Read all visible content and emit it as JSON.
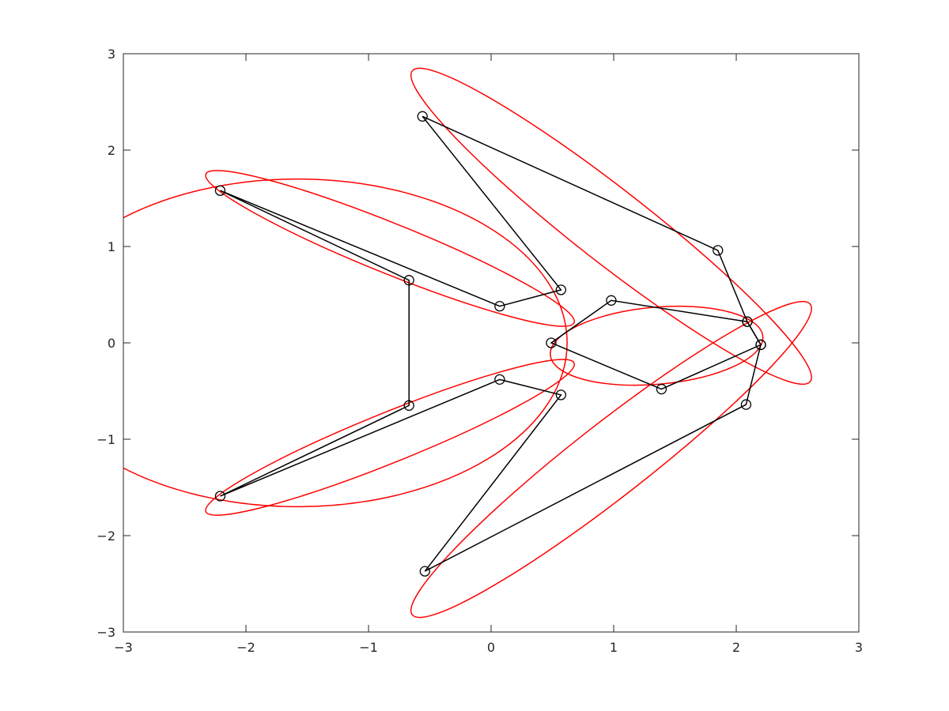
{
  "chart_data": {
    "type": "line",
    "title": "",
    "xlabel": "",
    "ylabel": "",
    "xlim": [
      -3,
      3
    ],
    "ylim": [
      -3,
      3
    ],
    "xticks": [
      -3,
      -2,
      -1,
      0,
      1,
      2,
      3
    ],
    "yticks": [
      -3,
      -2,
      -1,
      0,
      1,
      2,
      3
    ],
    "xtick_labels": [
      "−3",
      "−2",
      "−1",
      "0",
      "1",
      "2",
      "3"
    ],
    "ytick_labels": [
      "−3",
      "−2",
      "−1",
      "0",
      "1",
      "2",
      "3"
    ],
    "grid": false,
    "polygon_color": "#000000",
    "ellipse_color": "#ff0000",
    "polygons": [
      [
        [
          -2.21,
          1.58
        ],
        [
          -0.67,
          0.65
        ],
        [
          -0.67,
          -0.65
        ],
        [
          -2.21,
          -1.59
        ],
        [
          0.07,
          -0.38
        ],
        [
          0.57,
          -0.54
        ],
        [
          -0.54,
          -2.37
        ],
        [
          2.08,
          -0.64
        ],
        [
          2.2,
          -0.02
        ],
        [
          2.09,
          0.22
        ],
        [
          1.85,
          0.96
        ],
        [
          -0.56,
          2.35
        ],
        [
          0.57,
          0.55
        ],
        [
          0.07,
          0.38
        ]
      ],
      [
        [
          0.49,
          0.0
        ],
        [
          0.98,
          0.44
        ],
        [
          2.09,
          0.22
        ],
        [
          2.2,
          -0.02
        ],
        [
          1.39,
          -0.48
        ]
      ]
    ],
    "ellipses": [
      {
        "name": "upper-left",
        "cx": -0.825,
        "cy": 0.98,
        "rx": 1.62,
        "ry": 0.26,
        "angle_deg": -22
      },
      {
        "name": "lower-left",
        "cx": -0.825,
        "cy": -0.98,
        "rx": 1.62,
        "ry": 0.26,
        "angle_deg": 22
      },
      {
        "name": "upper-right",
        "cx": 0.98,
        "cy": 1.21,
        "rx": 2.06,
        "ry": 0.38,
        "angle_deg": -38
      },
      {
        "name": "lower-right",
        "cx": 0.98,
        "cy": -1.21,
        "rx": 2.06,
        "ry": 0.38,
        "angle_deg": 38
      },
      {
        "name": "left-middle",
        "cx": -1.58,
        "cy": 0.0,
        "rx": 2.2,
        "ry": 1.7,
        "angle_deg": 0,
        "visible_arc": "right"
      },
      {
        "name": "center-right",
        "cx": 1.35,
        "cy": -0.03,
        "rx": 0.87,
        "ry": 0.4,
        "angle_deg": 5
      }
    ]
  }
}
